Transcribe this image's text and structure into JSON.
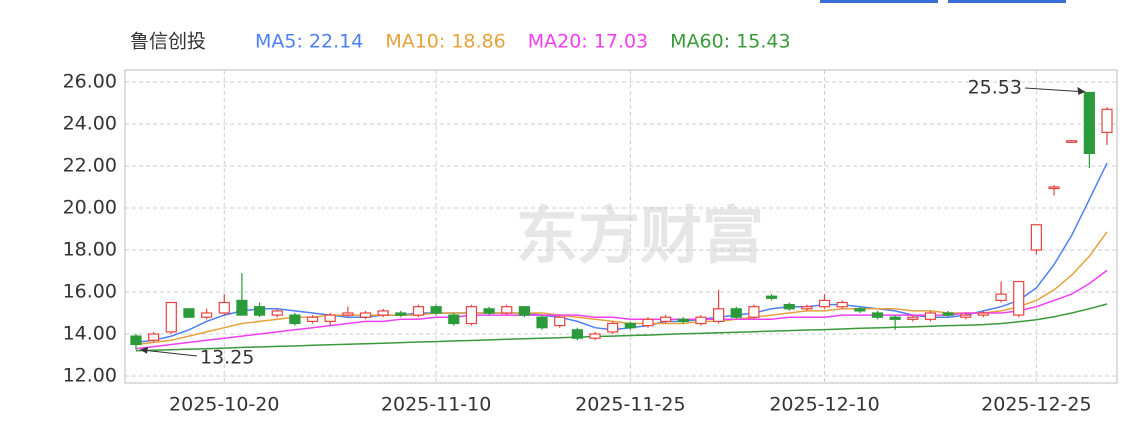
{
  "chart_data": {
    "type": "candlestick",
    "title": "鲁信创投",
    "watermark": "东方财富",
    "up_color": "#e8423f",
    "down_color": "#2a9a3a",
    "grid": true,
    "categories": [
      null,
      null,
      null,
      null,
      null,
      "2025-10-20",
      null,
      null,
      null,
      null,
      null,
      null,
      null,
      null,
      null,
      null,
      null,
      "2025-11-10",
      null,
      null,
      null,
      null,
      null,
      null,
      null,
      null,
      null,
      null,
      "2025-11-25",
      null,
      null,
      null,
      null,
      null,
      null,
      null,
      null,
      null,
      null,
      "2025-12-10",
      null,
      null,
      null,
      null,
      null,
      null,
      null,
      null,
      null,
      null,
      null,
      "2025-12-25",
      null,
      null,
      null,
      null
    ],
    "open": [
      13.9,
      13.7,
      14.1,
      15.2,
      14.8,
      15.0,
      15.6,
      15.3,
      14.9,
      14.9,
      14.6,
      14.6,
      14.9,
      14.8,
      14.9,
      15.0,
      14.9,
      15.3,
      14.9,
      14.5,
      15.2,
      15.0,
      15.3,
      14.8,
      14.4,
      14.2,
      13.8,
      14.1,
      14.5,
      14.4,
      14.6,
      14.7,
      14.5,
      14.6,
      15.2,
      14.8,
      15.8,
      15.4,
      15.2,
      15.3,
      15.3,
      15.2,
      15.0,
      14.8,
      14.7,
      14.7,
      15.0,
      14.8,
      14.9,
      15.6,
      14.9,
      18.0,
      21.0,
      23.2,
      25.5,
      23.6
    ],
    "close": [
      13.5,
      14.0,
      15.5,
      14.8,
      15.0,
      15.5,
      14.9,
      14.9,
      15.1,
      14.5,
      14.8,
      14.9,
      15.0,
      15.0,
      15.1,
      14.9,
      15.3,
      15.0,
      14.5,
      15.3,
      15.0,
      15.3,
      14.9,
      14.3,
      14.8,
      13.8,
      14.0,
      14.5,
      14.3,
      14.7,
      14.8,
      14.6,
      14.8,
      15.2,
      14.8,
      15.3,
      15.7,
      15.2,
      15.3,
      15.6,
      15.5,
      15.1,
      14.8,
      14.7,
      14.8,
      15.0,
      14.9,
      14.9,
      15.0,
      15.9,
      16.5,
      19.2,
      21.0,
      23.2,
      22.6,
      24.7
    ],
    "high": [
      14.0,
      14.1,
      15.5,
      15.2,
      15.2,
      15.9,
      16.9,
      15.5,
      15.2,
      15.0,
      14.9,
      15.0,
      15.3,
      15.1,
      15.2,
      15.1,
      15.4,
      15.4,
      15.0,
      15.4,
      15.3,
      15.4,
      15.3,
      14.9,
      14.9,
      14.3,
      14.1,
      14.6,
      14.6,
      14.8,
      14.9,
      14.8,
      14.9,
      16.1,
      15.3,
      15.4,
      15.9,
      15.5,
      15.4,
      15.9,
      15.6,
      15.3,
      15.1,
      14.9,
      14.9,
      15.1,
      15.1,
      15.0,
      15.1,
      16.5,
      16.5,
      19.2,
      21.1,
      23.2,
      25.53,
      24.8
    ],
    "low": [
      13.25,
      13.6,
      14.0,
      14.8,
      14.7,
      14.9,
      14.9,
      14.8,
      14.8,
      14.4,
      14.5,
      14.4,
      14.8,
      14.7,
      14.8,
      14.8,
      14.8,
      14.9,
      14.4,
      14.4,
      14.9,
      14.9,
      14.8,
      14.2,
      14.3,
      13.7,
      13.7,
      14.0,
      14.2,
      14.3,
      14.5,
      14.5,
      14.4,
      14.5,
      14.7,
      14.7,
      15.6,
      15.1,
      15.1,
      15.2,
      15.2,
      15.0,
      14.7,
      14.2,
      14.6,
      14.6,
      14.8,
      14.7,
      14.8,
      15.5,
      14.8,
      17.8,
      20.6,
      23.2,
      21.9,
      23.0
    ],
    "ma": [
      {
        "name": "MA5",
        "color": "#4e7ff5",
        "legend": {
          "value": 22.14,
          "label": "MA5: 22.14"
        },
        "values": [
          13.6,
          13.7,
          13.9,
          14.2,
          14.6,
          14.9,
          15.1,
          15.2,
          15.2,
          15.1,
          15.0,
          14.9,
          14.8,
          14.8,
          14.9,
          14.9,
          15.0,
          15.0,
          15.0,
          15.0,
          15.0,
          15.0,
          15.0,
          14.9,
          14.8,
          14.6,
          14.3,
          14.2,
          14.3,
          14.4,
          14.6,
          14.6,
          14.7,
          14.8,
          14.9,
          15.0,
          15.2,
          15.3,
          15.3,
          15.4,
          15.4,
          15.3,
          15.2,
          15.1,
          14.9,
          14.8,
          14.8,
          14.9,
          15.1,
          15.3,
          15.6,
          16.2,
          17.3,
          18.7,
          20.4,
          22.14
        ]
      },
      {
        "name": "MA10",
        "color": "#e6a23c",
        "legend": {
          "value": 18.86,
          "label": "MA10: 18.86"
        },
        "values": [
          13.5,
          13.6,
          13.7,
          13.9,
          14.1,
          14.3,
          14.5,
          14.6,
          14.7,
          14.8,
          14.8,
          14.9,
          14.9,
          14.9,
          14.9,
          14.9,
          14.9,
          15.0,
          15.0,
          15.0,
          15.0,
          15.0,
          15.0,
          15.0,
          14.9,
          14.8,
          14.7,
          14.6,
          14.5,
          14.5,
          14.5,
          14.5,
          14.6,
          14.6,
          14.7,
          14.8,
          14.9,
          15.0,
          15.1,
          15.1,
          15.2,
          15.2,
          15.2,
          15.2,
          15.1,
          15.1,
          15.0,
          15.0,
          15.0,
          15.1,
          15.3,
          15.6,
          16.1,
          16.8,
          17.7,
          18.86
        ]
      },
      {
        "name": "MA20",
        "color": "#f23ff2",
        "legend": {
          "value": 17.03,
          "label": "MA20: 17.03"
        },
        "values": [
          13.3,
          13.4,
          13.5,
          13.6,
          13.7,
          13.8,
          13.9,
          14.0,
          14.1,
          14.2,
          14.3,
          14.4,
          14.5,
          14.6,
          14.6,
          14.7,
          14.7,
          14.8,
          14.8,
          14.9,
          14.9,
          14.9,
          14.9,
          14.9,
          14.9,
          14.9,
          14.8,
          14.8,
          14.7,
          14.7,
          14.7,
          14.7,
          14.7,
          14.7,
          14.7,
          14.7,
          14.7,
          14.8,
          14.8,
          14.8,
          14.9,
          14.9,
          14.9,
          14.9,
          14.9,
          14.9,
          14.9,
          15.0,
          15.0,
          15.0,
          15.1,
          15.3,
          15.6,
          15.9,
          16.4,
          17.03
        ]
      },
      {
        "name": "MA60",
        "color": "#3a9a3a",
        "legend": {
          "value": 15.43,
          "label": "MA60: 15.43"
        },
        "values": [
          13.2,
          13.23,
          13.25,
          13.28,
          13.3,
          13.33,
          13.36,
          13.38,
          13.41,
          13.43,
          13.46,
          13.49,
          13.51,
          13.54,
          13.56,
          13.59,
          13.62,
          13.64,
          13.67,
          13.69,
          13.72,
          13.75,
          13.77,
          13.8,
          13.82,
          13.85,
          13.88,
          13.9,
          13.93,
          13.95,
          13.98,
          14.01,
          14.03,
          14.06,
          14.08,
          14.11,
          14.14,
          14.16,
          14.19,
          14.21,
          14.24,
          14.27,
          14.29,
          14.32,
          14.34,
          14.37,
          14.4,
          14.42,
          14.45,
          14.5,
          14.58,
          14.68,
          14.82,
          15.0,
          15.2,
          15.43
        ]
      }
    ],
    "annotations": {
      "max": 25.53,
      "min": 13.25
    },
    "ylim": [
      12,
      26
    ],
    "yticks": [
      {
        "value": 12,
        "label": "12.00"
      },
      {
        "value": 14,
        "label": "14.00"
      },
      {
        "value": 16,
        "label": "16.00"
      },
      {
        "value": 18,
        "label": "18.00"
      },
      {
        "value": 20,
        "label": "20.00"
      },
      {
        "value": 22,
        "label": "22.00"
      },
      {
        "value": 24,
        "label": "24.00"
      },
      {
        "value": 26,
        "label": "26.00"
      }
    ]
  }
}
